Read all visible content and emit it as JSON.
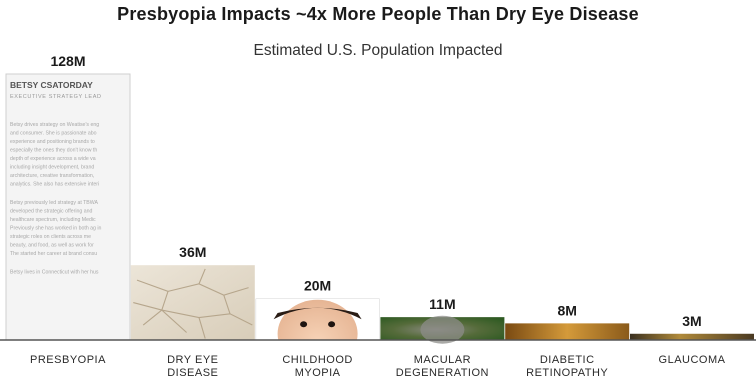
{
  "title": "Presbyopia Impacts ~4x More People Than Dry Eye Disease",
  "subtitle": "Estimated U.S. Population Impacted",
  "chart_data": {
    "type": "bar",
    "title": "Presbyopia Impacts ~4x More People Than Dry Eye Disease",
    "subtitle": "Estimated U.S. Population Impacted",
    "categories": [
      [
        "PRESBYOPIA"
      ],
      [
        "DRY EYE",
        "DISEASE"
      ],
      [
        "CHILDHOOD",
        "MYOPIA"
      ],
      [
        "MACULAR",
        "DEGENERATION"
      ],
      [
        "DIABETIC",
        "RETINOPATHY"
      ],
      [
        "GLAUCOMA"
      ]
    ],
    "values": [
      128,
      36,
      20,
      11,
      8,
      3
    ],
    "value_labels": [
      "128M",
      "36M",
      "20M",
      "11M",
      "8M",
      "3M"
    ],
    "unit": "M",
    "ylim": [
      0,
      128
    ],
    "grid": false,
    "legend": "none",
    "bar_fills": [
      "document-page",
      "cracked-earth",
      "child-face",
      "green-gray-retina",
      "amber-retina",
      "dark-gold"
    ]
  },
  "presbyopia_bar_text": {
    "name": "BETSY CSATORDAY",
    "role": "EXECUTIVE STRATEGY LEAD",
    "paragraph1": "Betsy drives strategy on Weatise's eng and consumer. She is passionate abo experience and positioning brands to especially the ones they don't know th depth of experience across a wide va including insight development, brand architecture, creative transformation, analytics. She also has extensive interi",
    "paragraph2": "Betsy previously led strategy at TBWA developed the strategic offering and healthcare spectrum, including Medic Previously she has worked in both ag in strategic roles on clients across me beauty, and food, as well as work for The started her career at brand consu",
    "paragraph3": "Betsy lives in Connecticut with her hus"
  }
}
